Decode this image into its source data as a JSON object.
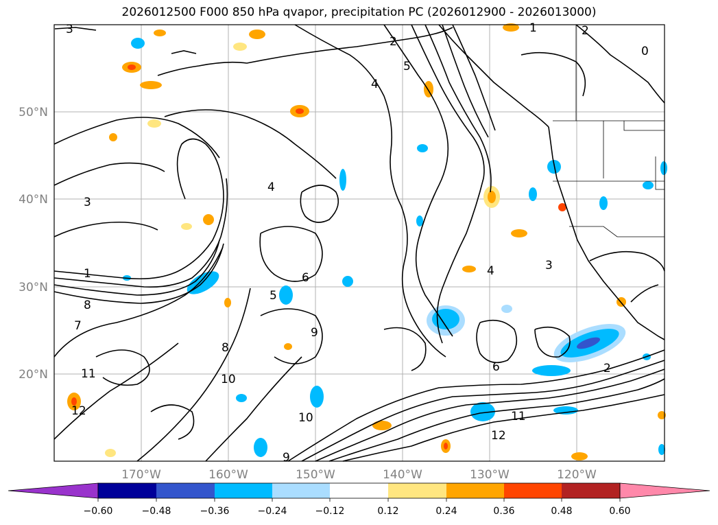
{
  "title": "2026012500 F000 850 hPa qvapor, precipitation PC (2026012900 - 2026013000)",
  "lat_labels": [
    "50°N",
    "40°N",
    "30°N",
    "20°N"
  ],
  "lon_labels": [
    "170°W",
    "160°W",
    "150°W",
    "140°W",
    "130°W",
    "120°W"
  ],
  "colorbar": {
    "ticks": [
      "−0.60",
      "−0.48",
      "−0.36",
      "−0.24",
      "−0.12",
      "0.12",
      "0.24",
      "0.36",
      "0.48",
      "0.60"
    ],
    "colors": [
      "#9933cc",
      "#000099",
      "#3355cc",
      "#00bbff",
      "#aaddff",
      "#ffffff",
      "#ffe680",
      "#ffa500",
      "#ff4500",
      "#b22222",
      "#ff88aa"
    ]
  },
  "contour_labels": [
    "3",
    "2",
    "5",
    "4",
    "1",
    "0",
    "2",
    "3",
    "4",
    "6",
    "8",
    "7",
    "9",
    "10",
    "11",
    "12",
    "5",
    "4",
    "3",
    "2",
    "1",
    "6",
    "8",
    "10",
    "12",
    "11",
    "9"
  ]
}
